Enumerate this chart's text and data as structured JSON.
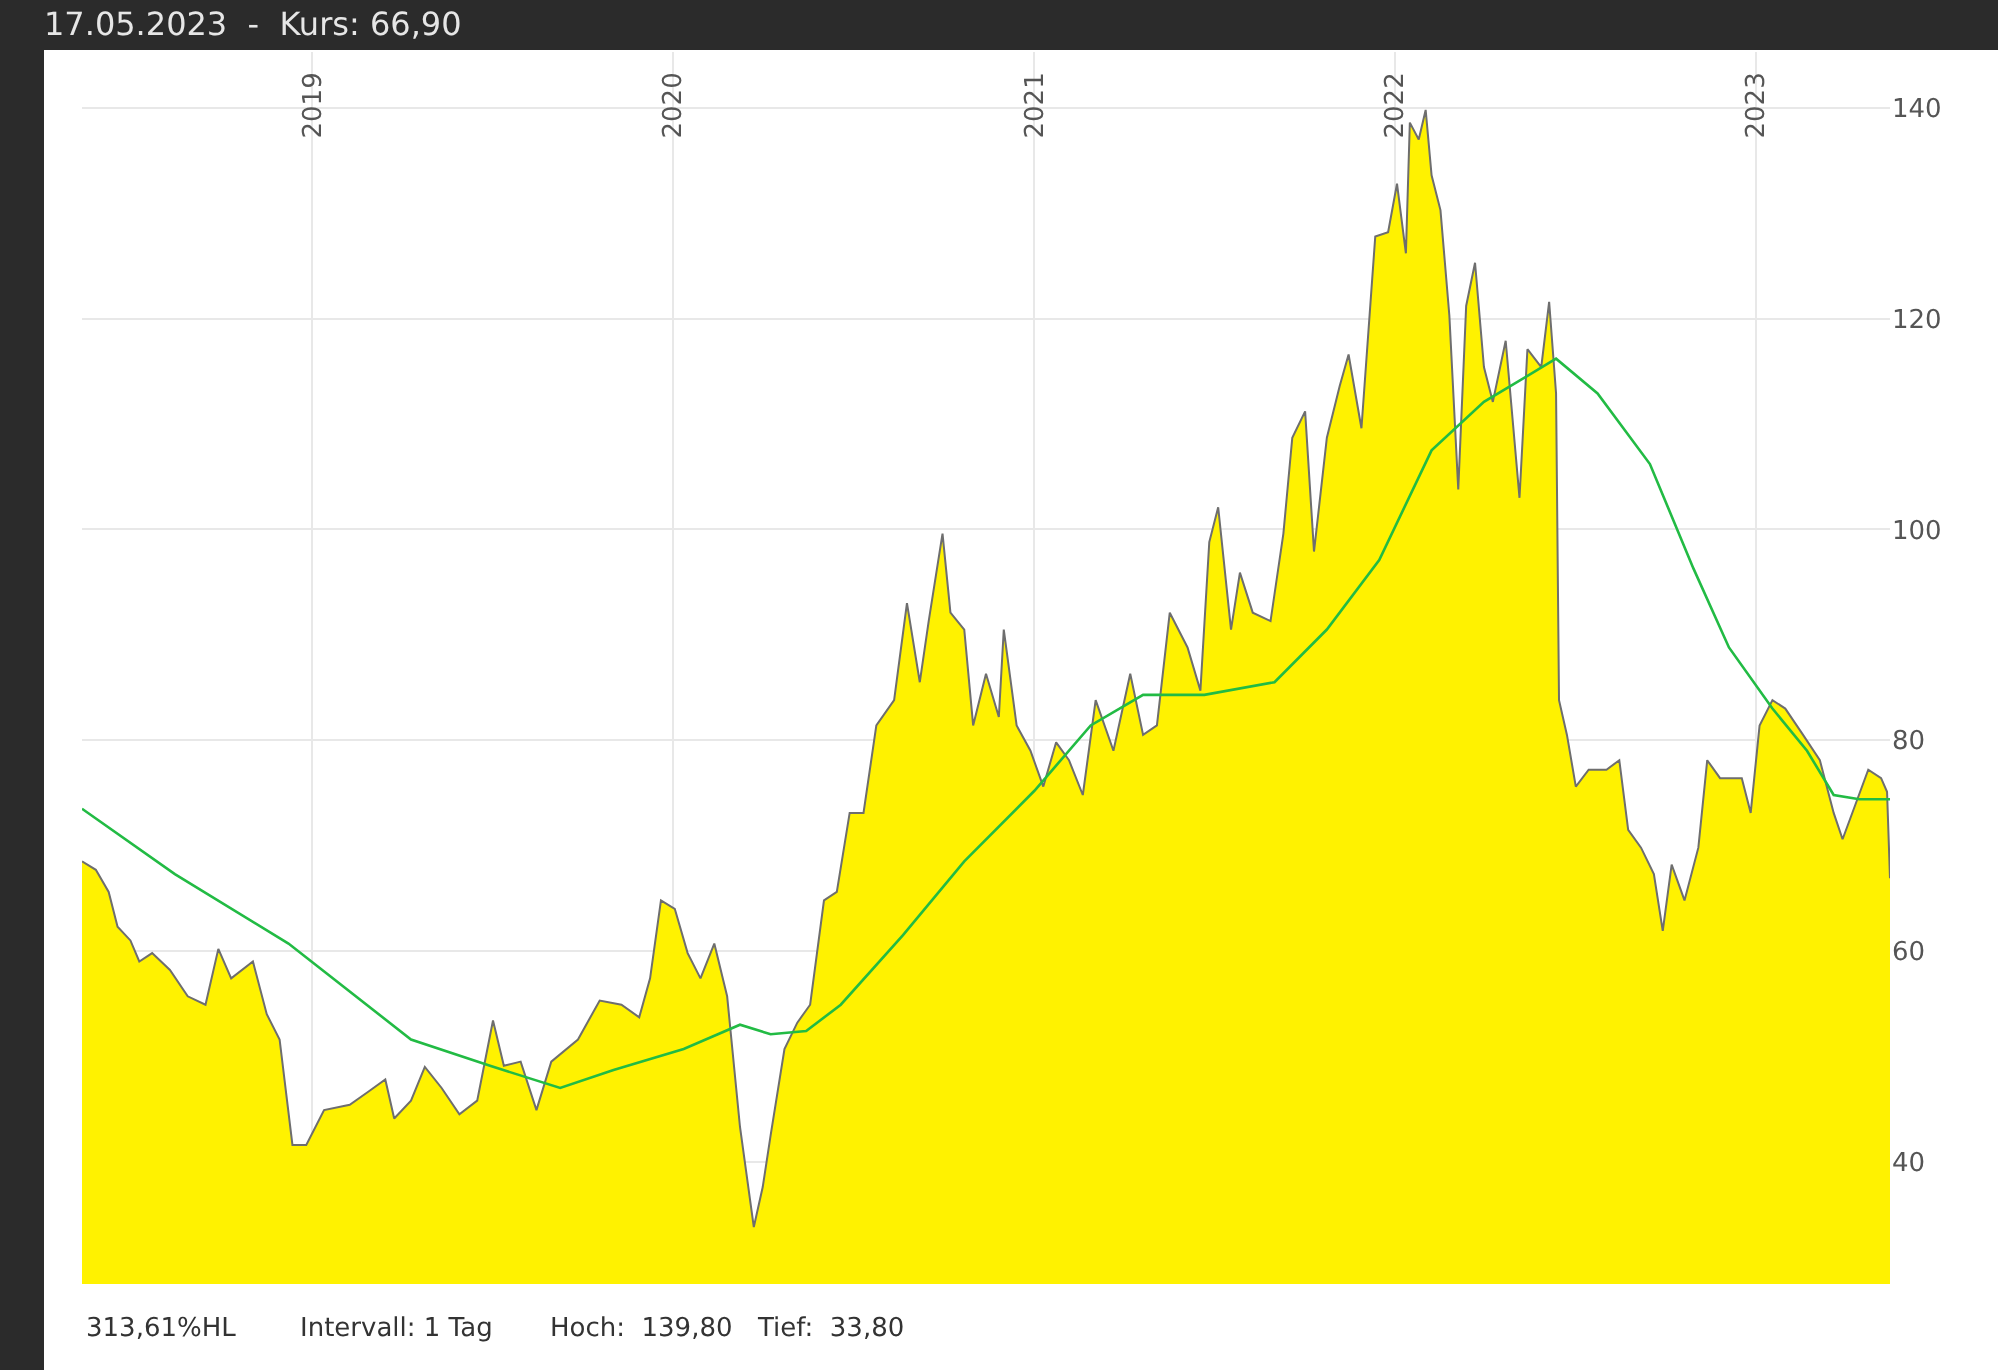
{
  "chart_data": {
    "type": "area",
    "title": "17.05.2023  -  Kurs: 66,90",
    "annotations": [
      "313,61%HL",
      "Intervall: 1 Tag",
      "Hoch:  139,80",
      "Tief:  33,80"
    ],
    "xlim": [
      "2018-05-13",
      "2023-05-17"
    ],
    "xticks": [
      {
        "value": "2019-01-01",
        "label": "2019"
      },
      {
        "value": "2020-01-01",
        "label": "2020"
      },
      {
        "value": "2021-01-01",
        "label": "2021"
      },
      {
        "value": "2022-01-01",
        "label": "2022"
      },
      {
        "value": "2023-01-01",
        "label": "2023"
      }
    ],
    "ylim": [
      28.4,
      145.3
    ],
    "yticks": [
      40,
      60,
      80,
      100,
      120,
      140
    ],
    "grid": true,
    "series": [
      {
        "color": "#fff200",
        "x": [
          "2018-05-13",
          "2018-05-27",
          "2018-06-09",
          "2018-06-18",
          "2018-07-01",
          "2018-07-10",
          "2018-07-23",
          "2018-08-10",
          "2018-08-28",
          "2018-09-15",
          "2018-09-28",
          "2018-10-11",
          "2018-11-02",
          "2018-11-16",
          "2018-11-29",
          "2018-12-12",
          "2018-12-26",
          "2019-01-13",
          "2019-02-08",
          "2019-02-26",
          "2019-03-16",
          "2019-03-25",
          "2019-04-11",
          "2019-04-25",
          "2019-05-12",
          "2019-05-30",
          "2019-06-17",
          "2019-07-03",
          "2019-07-14",
          "2019-07-31",
          "2019-08-16",
          "2019-08-31",
          "2019-09-27",
          "2019-10-19",
          "2019-11-10",
          "2019-11-28",
          "2019-12-09",
          "2019-12-20",
          "2020-01-03",
          "2020-01-16",
          "2020-01-29",
          "2020-02-12",
          "2020-02-25",
          "2020-03-09",
          "2020-03-23",
          "2020-04-01",
          "2020-04-09",
          "2020-04-23",
          "2020-05-06",
          "2020-05-19",
          "2020-06-02",
          "2020-06-15",
          "2020-06-28",
          "2020-07-12",
          "2020-07-25",
          "2020-08-12",
          "2020-08-25",
          "2020-09-07",
          "2020-09-16",
          "2020-09-30",
          "2020-10-08",
          "2020-10-22",
          "2020-10-31",
          "2020-11-13",
          "2020-11-26",
          "2020-12-01",
          "2020-12-14",
          "2020-12-28",
          "2021-01-10",
          "2021-01-23",
          "2021-02-05",
          "2021-02-19",
          "2021-03-04",
          "2021-03-22",
          "2021-04-08",
          "2021-04-21",
          "2021-05-05",
          "2021-05-18",
          "2021-06-05",
          "2021-06-18",
          "2021-06-27",
          "2021-07-06",
          "2021-07-19",
          "2021-07-28",
          "2021-08-10",
          "2021-08-28",
          "2021-09-10",
          "2021-09-19",
          "2021-10-02",
          "2021-10-11",
          "2021-10-24",
          "2021-11-06",
          "2021-11-15",
          "2021-11-28",
          "2021-12-12",
          "2021-12-25",
          "2022-01-03",
          "2022-01-12",
          "2022-01-16",
          "2022-01-25",
          "2022-02-01",
          "2022-02-07",
          "2022-02-16",
          "2022-02-25",
          "2022-03-06",
          "2022-03-14",
          "2022-03-23",
          "2022-04-01",
          "2022-04-10",
          "2022-04-23",
          "2022-05-07",
          "2022-05-15",
          "2022-05-29",
          "2022-06-06",
          "2022-06-13",
          "2022-06-16",
          "2022-06-24",
          "2022-07-03",
          "2022-07-16",
          "2022-08-03",
          "2022-08-16",
          "2022-08-25",
          "2022-09-07",
          "2022-09-20",
          "2022-09-29",
          "2022-10-08",
          "2022-10-21",
          "2022-11-04",
          "2022-11-13",
          "2022-11-26",
          "2022-12-18",
          "2022-12-27",
          "2023-01-05",
          "2023-01-18",
          "2023-01-31",
          "2023-02-18",
          "2023-03-07",
          "2023-03-21",
          "2023-03-30",
          "2023-04-12",
          "2023-04-25",
          "2023-05-08",
          "2023-05-14",
          "2023-05-17"
        ],
        "values": [
          68.5,
          67.7,
          65.6,
          62.3,
          61.0,
          59.0,
          59.8,
          58.2,
          55.7,
          54.9,
          60.2,
          57.4,
          59.0,
          54.0,
          51.6,
          41.6,
          41.6,
          44.9,
          45.4,
          46.6,
          47.8,
          44.1,
          45.8,
          49.0,
          47.0,
          44.5,
          45.8,
          53.4,
          49.1,
          49.5,
          44.9,
          49.5,
          51.6,
          55.3,
          54.9,
          53.7,
          57.4,
          64.8,
          64.0,
          59.8,
          57.4,
          60.7,
          55.7,
          43.3,
          33.8,
          37.6,
          42.5,
          50.7,
          53.2,
          54.9,
          64.8,
          65.6,
          73.1,
          73.1,
          81.4,
          83.8,
          93.0,
          85.5,
          91.3,
          99.6,
          92.1,
          90.5,
          81.4,
          86.3,
          82.2,
          90.5,
          81.4,
          79.0,
          75.6,
          79.8,
          78.1,
          74.8,
          83.8,
          79.0,
          86.3,
          80.5,
          81.4,
          92.1,
          88.8,
          84.7,
          98.8,
          102.1,
          90.5,
          95.9,
          92.1,
          91.3,
          99.6,
          108.7,
          111.2,
          97.9,
          108.7,
          113.6,
          116.6,
          109.6,
          127.8,
          128.2,
          132.8,
          126.2,
          138.6,
          137.0,
          139.8,
          133.6,
          130.3,
          120.3,
          103.8,
          121.2,
          125.3,
          115.4,
          112.1,
          117.9,
          103.0,
          117.1,
          115.4,
          121.6,
          112.9,
          83.8,
          80.5,
          75.6,
          77.2,
          77.2,
          78.1,
          71.5,
          69.8,
          67.3,
          61.9,
          68.2,
          64.8,
          69.8,
          78.1,
          76.4,
          76.4,
          73.1,
          81.4,
          83.8,
          83.0,
          80.5,
          78.1,
          73.1,
          70.6,
          73.9,
          77.2,
          76.4,
          75.1,
          66.9
        ]
      },
      {
        "type": "line",
        "color": "#22bb44",
        "x": [
          "2018-05-13",
          "2018-08-15",
          "2018-12-08",
          "2019-04-11",
          "2019-06-30",
          "2019-09-09",
          "2019-11-02",
          "2020-01-12",
          "2020-03-09",
          "2020-04-09",
          "2020-05-15",
          "2020-06-19",
          "2020-08-21",
          "2020-10-22",
          "2021-01-01",
          "2021-02-27",
          "2021-04-21",
          "2021-06-22",
          "2021-09-01",
          "2021-10-24",
          "2021-12-16",
          "2022-02-07",
          "2022-04-01",
          "2022-06-13",
          "2022-07-25",
          "2022-09-16",
          "2022-10-30",
          "2022-12-05",
          "2023-01-18",
          "2023-02-22",
          "2023-03-21",
          "2023-04-16",
          "2023-05-17"
        ],
        "values": [
          73.5,
          67.3,
          60.7,
          51.6,
          49.1,
          47.0,
          48.7,
          50.7,
          53.0,
          52.1,
          52.4,
          54.9,
          61.5,
          68.5,
          75.2,
          81.4,
          84.3,
          84.3,
          85.5,
          90.5,
          97.1,
          107.5,
          112.1,
          116.2,
          112.9,
          106.2,
          96.3,
          88.8,
          83.0,
          79.0,
          74.8,
          74.4,
          74.4
        ]
      }
    ]
  }
}
